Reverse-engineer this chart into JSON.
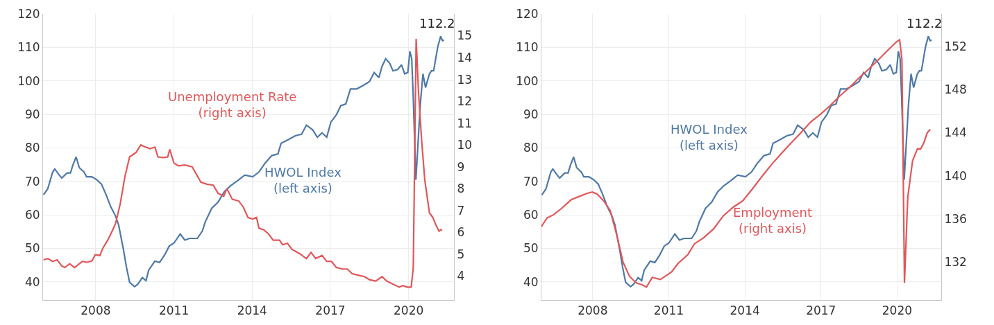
{
  "chart_data": [
    {
      "type": "line",
      "xlim": [
        2005.98,
        2021.74
      ],
      "xticks": [
        2008,
        2011,
        2014,
        2017,
        2020
      ],
      "ylim": [
        34.6,
        120
      ],
      "yticks": [
        40,
        50,
        60,
        70,
        80,
        90,
        100,
        110,
        120
      ],
      "y2lim": [
        2.9,
        16
      ],
      "y2ticks": [
        4,
        5,
        6,
        7,
        8,
        9,
        10,
        11,
        12,
        13,
        14,
        15
      ],
      "grid": true,
      "legend": false,
      "marker": "none",
      "line_style": "solid",
      "annotations": [
        {
          "text": "112.2",
          "x": 2021.36,
          "y": 112.2
        }
      ],
      "series": [
        {
          "name": "Unemployment Rate (right axis)",
          "color": "#e15759",
          "axis": "y2",
          "x": [
            2006.0,
            2006.16,
            2006.35,
            2006.52,
            2006.7,
            2006.82,
            2007.0,
            2007.19,
            2007.37,
            2007.49,
            2007.67,
            2007.86,
            2007.98,
            2008.16,
            2008.28,
            2008.46,
            2008.64,
            2008.76,
            2008.94,
            2009.12,
            2009.3,
            2009.55,
            2009.73,
            2009.91,
            2010.09,
            2010.27,
            2010.39,
            2010.58,
            2010.76,
            2010.84,
            2011.0,
            2011.18,
            2011.42,
            2011.7,
            2012.03,
            2012.27,
            2012.51,
            2012.69,
            2012.91,
            2013.03,
            2013.24,
            2013.48,
            2013.66,
            2013.84,
            2014.02,
            2014.17,
            2014.26,
            2014.44,
            2014.63,
            2014.81,
            2015.05,
            2015.17,
            2015.35,
            2015.53,
            2015.84,
            2016.08,
            2016.26,
            2016.44,
            2016.68,
            2016.86,
            2017.04,
            2017.23,
            2017.47,
            2017.65,
            2017.83,
            2018.07,
            2018.31,
            2018.5,
            2018.74,
            2018.98,
            2019.16,
            2019.4,
            2019.64,
            2019.77,
            2019.95,
            2020.1,
            2020.18,
            2020.29,
            2020.38,
            2020.5,
            2020.62,
            2020.8,
            2020.93,
            2021.05,
            2021.17,
            2021.23,
            2021.29
          ],
          "values": [
            4.74,
            4.8,
            4.67,
            4.74,
            4.46,
            4.39,
            4.56,
            4.39,
            4.56,
            4.67,
            4.63,
            4.7,
            4.97,
            4.94,
            5.29,
            5.64,
            6.08,
            6.4,
            7.3,
            8.55,
            9.45,
            9.66,
            10.0,
            9.9,
            9.83,
            9.9,
            9.45,
            9.42,
            9.45,
            9.8,
            9.17,
            9.04,
            9.08,
            9.0,
            8.3,
            8.2,
            8.16,
            7.79,
            7.65,
            8.0,
            7.51,
            7.44,
            7.16,
            6.68,
            6.61,
            6.68,
            6.19,
            6.12,
            5.92,
            5.64,
            5.64,
            5.43,
            5.5,
            5.22,
            5.01,
            4.8,
            5.08,
            4.8,
            4.94,
            4.67,
            4.67,
            4.39,
            4.32,
            4.32,
            4.11,
            4.04,
            3.97,
            3.83,
            3.77,
            3.97,
            3.77,
            3.63,
            3.49,
            3.56,
            3.49,
            3.49,
            4.39,
            14.86,
            12.43,
            10.21,
            8.41,
            6.89,
            6.68,
            6.33,
            6.05,
            6.12,
            6.1
          ]
        },
        {
          "name": "HWOL Index (left axis)",
          "color": "#4e79a7",
          "axis": "y",
          "x": [
            2006.0,
            2006.16,
            2006.35,
            2006.43,
            2006.6,
            2006.7,
            2006.9,
            2007.03,
            2007.13,
            2007.25,
            2007.37,
            2007.55,
            2007.65,
            2007.85,
            2008.04,
            2008.22,
            2008.4,
            2008.58,
            2008.76,
            2008.88,
            2009.06,
            2009.18,
            2009.3,
            2009.49,
            2009.6,
            2009.79,
            2009.93,
            2010.03,
            2010.27,
            2010.45,
            2010.64,
            2010.82,
            2011.0,
            2011.24,
            2011.42,
            2011.6,
            2011.9,
            2012.09,
            2012.2,
            2012.45,
            2012.69,
            2012.93,
            2013.17,
            2013.42,
            2013.72,
            2014.02,
            2014.26,
            2014.5,
            2014.75,
            2014.99,
            2015.11,
            2015.35,
            2015.65,
            2015.9,
            2016.08,
            2016.32,
            2016.5,
            2016.68,
            2016.86,
            2017.02,
            2017.23,
            2017.4,
            2017.59,
            2017.77,
            2018.01,
            2018.25,
            2018.5,
            2018.68,
            2018.86,
            2018.98,
            2019.12,
            2019.28,
            2019.4,
            2019.58,
            2019.73,
            2019.85,
            2019.97,
            2020.05,
            2020.12,
            2020.18,
            2020.28,
            2020.45,
            2020.55,
            2020.65,
            2020.8,
            2020.88,
            2020.96,
            2021.12,
            2021.23,
            2021.3,
            2021.36
          ],
          "values": [
            66.0,
            67.8,
            72.8,
            73.7,
            71.9,
            71.0,
            72.5,
            72.5,
            75.0,
            77.3,
            74.1,
            72.8,
            71.4,
            71.4,
            70.5,
            69.2,
            66.0,
            62.4,
            59.7,
            57.0,
            49.8,
            44.4,
            39.9,
            38.6,
            39.2,
            41.3,
            40.4,
            43.5,
            46.2,
            45.8,
            48.0,
            50.7,
            51.6,
            54.3,
            52.5,
            53.0,
            53.0,
            55.2,
            57.9,
            62.0,
            63.8,
            66.9,
            68.7,
            70.1,
            71.9,
            71.4,
            72.8,
            75.5,
            77.7,
            78.2,
            81.4,
            82.3,
            83.6,
            84.1,
            86.8,
            85.4,
            83.2,
            84.5,
            83.2,
            87.7,
            89.9,
            92.6,
            93.1,
            97.6,
            97.6,
            98.6,
            99.8,
            102.5,
            101.0,
            104.3,
            106.6,
            105.2,
            103.0,
            103.4,
            104.8,
            102.1,
            102.5,
            108.8,
            106.6,
            94.9,
            70.5,
            93.1,
            102.1,
            98.0,
            102.1,
            103.0,
            103.0,
            110.2,
            113.3,
            112.0,
            112.2
          ]
        }
      ]
    },
    {
      "type": "line",
      "xlim": [
        2005.98,
        2021.74
      ],
      "xticks": [
        2008,
        2011,
        2014,
        2017,
        2020
      ],
      "ylim": [
        34.6,
        120
      ],
      "yticks": [
        40,
        50,
        60,
        70,
        80,
        90,
        100,
        110,
        120
      ],
      "y2lim": [
        128.5,
        155
      ],
      "y2ticks": [
        132,
        136,
        140,
        144,
        148,
        152
      ],
      "grid": true,
      "legend": false,
      "marker": "none",
      "line_style": "solid",
      "annotations": [
        {
          "text": "112.2",
          "x": 2021.36,
          "y": 112.2
        }
      ],
      "series": [
        {
          "name": "HWOL Index (left axis)",
          "color": "#4e79a7",
          "axis": "y",
          "x": [
            2006.0,
            2006.16,
            2006.35,
            2006.43,
            2006.6,
            2006.7,
            2006.9,
            2007.03,
            2007.13,
            2007.25,
            2007.37,
            2007.55,
            2007.65,
            2007.85,
            2008.04,
            2008.22,
            2008.4,
            2008.58,
            2008.76,
            2008.88,
            2009.06,
            2009.18,
            2009.3,
            2009.49,
            2009.6,
            2009.79,
            2009.93,
            2010.03,
            2010.27,
            2010.45,
            2010.64,
            2010.82,
            2011.0,
            2011.24,
            2011.42,
            2011.6,
            2011.9,
            2012.09,
            2012.2,
            2012.45,
            2012.69,
            2012.93,
            2013.17,
            2013.42,
            2013.72,
            2014.02,
            2014.26,
            2014.5,
            2014.75,
            2014.99,
            2015.11,
            2015.35,
            2015.65,
            2015.9,
            2016.08,
            2016.32,
            2016.5,
            2016.68,
            2016.86,
            2017.02,
            2017.23,
            2017.4,
            2017.59,
            2017.77,
            2018.01,
            2018.25,
            2018.5,
            2018.68,
            2018.86,
            2018.98,
            2019.12,
            2019.28,
            2019.4,
            2019.58,
            2019.73,
            2019.85,
            2019.97,
            2020.05,
            2020.12,
            2020.18,
            2020.28,
            2020.45,
            2020.55,
            2020.65,
            2020.8,
            2020.88,
            2020.96,
            2021.12,
            2021.23,
            2021.3,
            2021.36
          ],
          "values": [
            66.0,
            67.8,
            72.8,
            73.7,
            71.9,
            71.0,
            72.5,
            72.5,
            75.0,
            77.3,
            74.1,
            72.8,
            71.4,
            71.4,
            70.5,
            69.2,
            66.0,
            62.4,
            59.7,
            57.0,
            49.8,
            44.4,
            39.9,
            38.6,
            39.2,
            41.3,
            40.4,
            43.5,
            46.2,
            45.8,
            48.0,
            50.7,
            51.6,
            54.3,
            52.5,
            53.0,
            53.0,
            55.2,
            57.9,
            62.0,
            63.8,
            66.9,
            68.7,
            70.1,
            71.9,
            71.4,
            72.8,
            75.5,
            77.7,
            78.2,
            81.4,
            82.3,
            83.6,
            84.1,
            86.8,
            85.4,
            83.2,
            84.5,
            83.2,
            87.7,
            89.9,
            92.6,
            93.1,
            97.6,
            97.6,
            98.6,
            99.8,
            102.5,
            101.0,
            104.3,
            106.6,
            105.2,
            103.0,
            103.4,
            104.8,
            102.1,
            102.5,
            108.8,
            106.6,
            94.9,
            70.5,
            93.1,
            102.1,
            98.0,
            102.1,
            103.0,
            103.0,
            110.2,
            113.3,
            112.0,
            112.2
          ]
        },
        {
          "name": "Employment (right axis)",
          "color": "#e15759",
          "axis": "y2",
          "x": [
            2005.98,
            2006.2,
            2006.46,
            2006.78,
            2007.16,
            2007.48,
            2007.8,
            2007.99,
            2008.18,
            2008.43,
            2008.69,
            2008.94,
            2009.2,
            2009.45,
            2009.71,
            2009.96,
            2010.12,
            2010.35,
            2010.67,
            2010.86,
            2011.11,
            2011.37,
            2011.75,
            2012.01,
            2012.39,
            2012.77,
            2013.15,
            2013.54,
            2013.92,
            2014.3,
            2014.69,
            2015.07,
            2015.45,
            2015.84,
            2016.21,
            2016.6,
            2016.98,
            2017.36,
            2017.74,
            2018.13,
            2018.51,
            2018.89,
            2019.28,
            2019.66,
            2019.97,
            2020.1,
            2020.19,
            2020.29,
            2020.42,
            2020.61,
            2020.8,
            2020.93,
            2021.06,
            2021.19,
            2021.31
          ],
          "values": [
            135.3,
            136.1,
            136.4,
            137.0,
            137.8,
            138.1,
            138.4,
            138.5,
            138.3,
            137.7,
            136.8,
            134.6,
            132.0,
            130.7,
            130.1,
            129.9,
            129.7,
            130.6,
            130.4,
            130.7,
            131.1,
            131.9,
            132.7,
            133.7,
            134.3,
            135.1,
            136.3,
            137.1,
            137.7,
            138.8,
            140.0,
            141.1,
            142.1,
            143.1,
            144.0,
            145.0,
            145.7,
            146.5,
            147.4,
            148.2,
            149.1,
            149.9,
            150.8,
            151.7,
            152.4,
            152.6,
            150.8,
            130.1,
            138.0,
            141.4,
            142.5,
            142.5,
            143.1,
            144.0,
            144.3
          ]
        }
      ]
    }
  ]
}
